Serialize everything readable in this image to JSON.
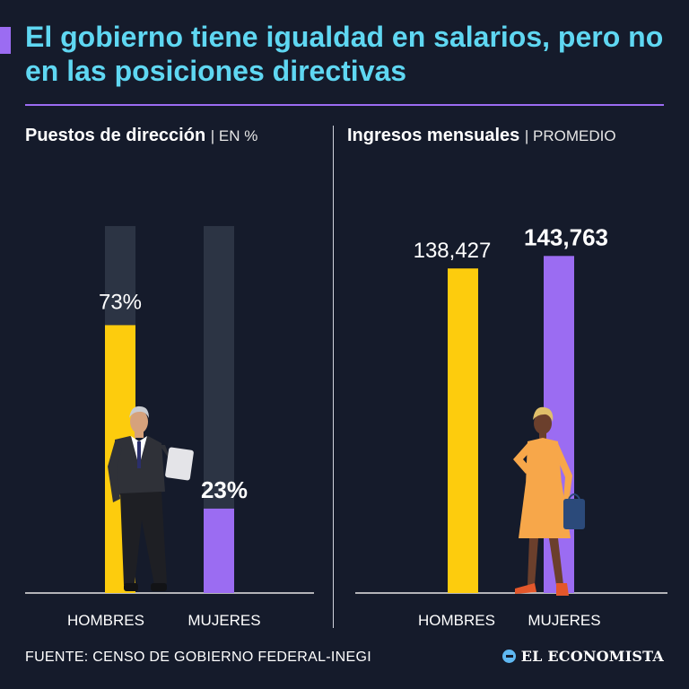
{
  "title": "El gobierno tiene igualdad en salarios, pero no en las posiciones directivas",
  "colors": {
    "accent": "#9b6cf2",
    "title": "#5fd7f2",
    "background": "#151b2b",
    "hombres": "#fdcc0d",
    "mujeres": "#9b6cf2",
    "track": "#2c3444"
  },
  "footer": {
    "source": "FUENTE: CENSO DE GOBIERNO FEDERAL-INEGI",
    "brand": "EL ECONOMISTA"
  },
  "chart_data": [
    {
      "type": "bar",
      "title": "Puestos de dirección",
      "unit_label": "| EN %",
      "categories": [
        "HOMBRES",
        "MUJERES"
      ],
      "values": [
        73,
        23
      ],
      "value_labels": [
        "73%",
        "23%"
      ],
      "ylim": [
        0,
        100
      ]
    },
    {
      "type": "bar",
      "title": "Ingresos mensuales",
      "unit_label": "| PROMEDIO",
      "categories": [
        "HOMBRES",
        "MUJERES"
      ],
      "values": [
        138427,
        143763
      ],
      "value_labels": [
        "138,427",
        "143,763"
      ],
      "ylim": [
        0,
        150000
      ]
    }
  ]
}
